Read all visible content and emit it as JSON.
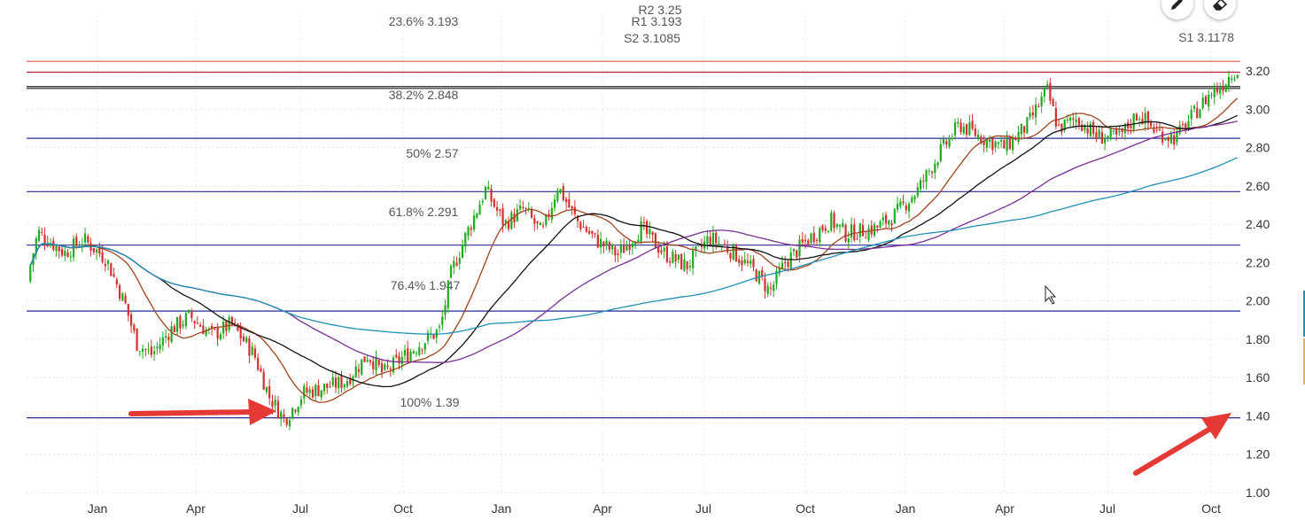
{
  "chart_data": {
    "type": "candlestick",
    "y_axis": {
      "ticks": [
        "1.00",
        "1.20",
        "1.40",
        "1.60",
        "1.80",
        "2.00",
        "2.20",
        "2.40",
        "2.60",
        "2.80",
        "3.00",
        "3.20"
      ],
      "ylim": [
        1.0,
        3.25
      ],
      "position": "right"
    },
    "x_axis": {
      "ticks": [
        "Jan",
        "Apr",
        "Jul",
        "Oct",
        "Jan",
        "Apr",
        "Jul",
        "Oct",
        "Jan",
        "Apr",
        "Jul",
        "Oct"
      ]
    },
    "grid": true,
    "levels": [
      {
        "label": "R2 3.25",
        "value": 3.25,
        "color": "#e05a5a"
      },
      {
        "label": "R1 3.193",
        "value": 3.193,
        "color": "#b0203a"
      },
      {
        "label": "23.6% 3.193",
        "value": 3.193,
        "color": "#b0203a"
      },
      {
        "label": "S2 3.1085",
        "value": 3.1085,
        "color": "#222222"
      },
      {
        "label": "S1 3.1178",
        "value": 3.1178,
        "color": "#222222"
      },
      {
        "label": "38.2% 2.848",
        "value": 2.848,
        "color": "#2a2a9a"
      },
      {
        "label": "50% 2.57",
        "value": 2.57,
        "color": "#2a2a9a"
      },
      {
        "label": "61.8% 2.291",
        "value": 2.291,
        "color": "#2a2a9a"
      },
      {
        "label": "76.4% 1.947",
        "value": 1.947,
        "color": "#2a2a9a"
      },
      {
        "label": "100% 1.39",
        "value": 1.39,
        "color": "#2a2a9a"
      }
    ],
    "price_path": [
      [
        0,
        2.1
      ],
      [
        0.3,
        2.36
      ],
      [
        1.0,
        2.25
      ],
      [
        1.5,
        2.32
      ],
      [
        2.1,
        2.22
      ],
      [
        2.6,
        1.98
      ],
      [
        2.9,
        1.78
      ],
      [
        3.3,
        1.72
      ],
      [
        3.8,
        1.85
      ],
      [
        4.3,
        1.92
      ],
      [
        4.9,
        1.82
      ],
      [
        5.4,
        1.88
      ],
      [
        6.0,
        1.72
      ],
      [
        6.4,
        1.5
      ],
      [
        6.8,
        1.38
      ],
      [
        7.3,
        1.52
      ],
      [
        7.9,
        1.55
      ],
      [
        8.4,
        1.58
      ],
      [
        9.0,
        1.72
      ],
      [
        9.4,
        1.62
      ],
      [
        10.2,
        1.75
      ],
      [
        10.9,
        1.85
      ],
      [
        11.2,
        2.15
      ],
      [
        11.6,
        2.35
      ],
      [
        12.1,
        2.58
      ],
      [
        12.6,
        2.4
      ],
      [
        13.1,
        2.48
      ],
      [
        13.6,
        2.35
      ],
      [
        14.0,
        2.6
      ],
      [
        14.5,
        2.42
      ],
      [
        15.0,
        2.32
      ],
      [
        15.6,
        2.24
      ],
      [
        16.2,
        2.38
      ],
      [
        16.8,
        2.25
      ],
      [
        17.4,
        2.18
      ],
      [
        18.0,
        2.33
      ],
      [
        18.6,
        2.26
      ],
      [
        19.2,
        2.15
      ],
      [
        19.6,
        2.05
      ],
      [
        20.0,
        2.2
      ],
      [
        20.6,
        2.32
      ],
      [
        21.2,
        2.42
      ],
      [
        21.6,
        2.35
      ],
      [
        22.4,
        2.38
      ],
      [
        22.9,
        2.45
      ],
      [
        23.5,
        2.58
      ],
      [
        24.1,
        2.78
      ],
      [
        24.6,
        2.92
      ],
      [
        25.2,
        2.85
      ],
      [
        25.8,
        2.8
      ],
      [
        26.4,
        2.92
      ],
      [
        26.9,
        3.1
      ],
      [
        27.2,
        2.9
      ],
      [
        27.7,
        2.95
      ],
      [
        28.2,
        2.86
      ],
      [
        28.8,
        2.85
      ],
      [
        29.3,
        2.98
      ],
      [
        29.8,
        2.88
      ],
      [
        30.3,
        2.85
      ],
      [
        30.8,
        2.98
      ],
      [
        31.2,
        3.08
      ],
      [
        31.5,
        3.12
      ],
      [
        31.8,
        3.2
      ]
    ],
    "moving_averages": [
      {
        "color": "#a0441e",
        "lag": 1
      },
      {
        "color": "#111111",
        "lag": 2
      },
      {
        "color": "#7a2d94",
        "lag": 4
      },
      {
        "color": "#1f8fb5",
        "lag": 8
      }
    ],
    "bull_color": "#22a822",
    "bear_color": "#d32f2f"
  },
  "annotations": [
    {
      "type": "arrow",
      "color": "#e53935",
      "direction": "right",
      "near": "100% 1.39 low"
    },
    {
      "type": "arrow",
      "color": "#e53935",
      "direction": "up-right",
      "near": "y-axis 1.40"
    }
  ],
  "toolbar": [
    {
      "icon": "pencil-icon"
    },
    {
      "icon": "eraser-icon"
    }
  ]
}
